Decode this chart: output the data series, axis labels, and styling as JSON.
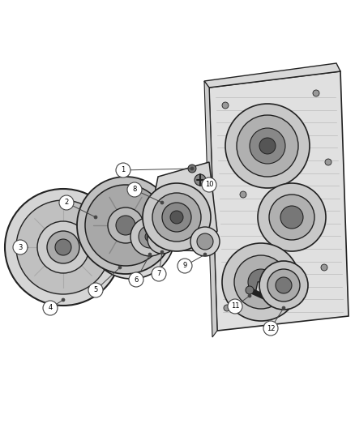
{
  "bg_color": "#ffffff",
  "fig_width": 4.38,
  "fig_height": 5.33,
  "dpi": 100,
  "line_color": "#444444",
  "dark_color": "#222222",
  "label_fontsize": 6.0
}
